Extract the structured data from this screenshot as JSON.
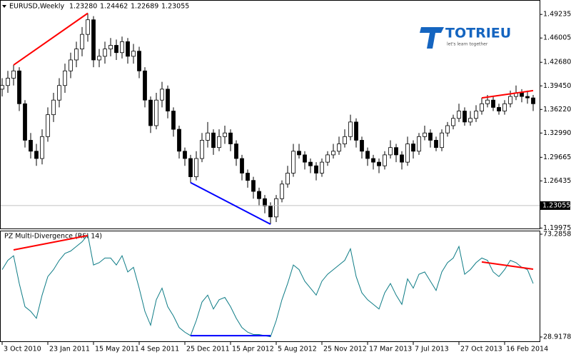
{
  "header": {
    "symbol": "EURUSD,Weekly",
    "ohlc": [
      "1.23280",
      "1.24462",
      "1.22689",
      "1.23055"
    ]
  },
  "logo": {
    "name": "TOTRIEU",
    "tagline": "let's learn together"
  },
  "chart_data": [
    {
      "type": "candlestick",
      "open": [
        1.39,
        1.395,
        1.405,
        1.415,
        1.37,
        1.32,
        1.305,
        1.295,
        1.325,
        1.355,
        1.375,
        1.395,
        1.415,
        1.43,
        1.445,
        1.465,
        1.485,
        1.43,
        1.435,
        1.445,
        1.45,
        1.44,
        1.455,
        1.435,
        1.442,
        1.415,
        1.375,
        1.34,
        1.375,
        1.39,
        1.36,
        1.335,
        1.305,
        1.295,
        1.27,
        1.295,
        1.32,
        1.33,
        1.31,
        1.325,
        1.33,
        1.315,
        1.295,
        1.275,
        1.265,
        1.25,
        1.24,
        1.23,
        1.215,
        1.24,
        1.26,
        1.275,
        1.305,
        1.3,
        1.29,
        1.285,
        1.275,
        1.29,
        1.3,
        1.305,
        1.315,
        1.325,
        1.345,
        1.32,
        1.305,
        1.295,
        1.29,
        1.285,
        1.3,
        1.31,
        1.3,
        1.29,
        1.315,
        1.305,
        1.325,
        1.33,
        1.32,
        1.31,
        1.33,
        1.34,
        1.35,
        1.36,
        1.345,
        1.35,
        1.36,
        1.37,
        1.375,
        1.365,
        1.36,
        1.37,
        1.38,
        1.385,
        1.38,
        1.378
      ],
      "high": [
        1.405,
        1.415,
        1.423,
        1.42,
        1.375,
        1.33,
        1.315,
        1.335,
        1.365,
        1.385,
        1.405,
        1.425,
        1.44,
        1.455,
        1.475,
        1.494,
        1.49,
        1.445,
        1.455,
        1.46,
        1.458,
        1.462,
        1.46,
        1.452,
        1.448,
        1.42,
        1.38,
        1.385,
        1.4,
        1.395,
        1.365,
        1.34,
        1.31,
        1.3,
        1.305,
        1.33,
        1.345,
        1.335,
        1.335,
        1.34,
        1.335,
        1.32,
        1.3,
        1.28,
        1.27,
        1.255,
        1.245,
        1.235,
        1.245,
        1.265,
        1.285,
        1.315,
        1.315,
        1.305,
        1.295,
        1.29,
        1.295,
        1.305,
        1.315,
        1.325,
        1.335,
        1.355,
        1.35,
        1.325,
        1.31,
        1.3,
        1.295,
        1.305,
        1.32,
        1.315,
        1.305,
        1.325,
        1.32,
        1.33,
        1.34,
        1.335,
        1.325,
        1.335,
        1.345,
        1.355,
        1.37,
        1.365,
        1.36,
        1.368,
        1.378,
        1.382,
        1.38,
        1.37,
        1.375,
        1.388,
        1.395,
        1.39,
        1.388,
        1.382
      ],
      "low": [
        1.38,
        1.385,
        1.395,
        1.36,
        1.31,
        1.295,
        1.285,
        1.287,
        1.318,
        1.345,
        1.365,
        1.385,
        1.405,
        1.42,
        1.435,
        1.455,
        1.42,
        1.42,
        1.425,
        1.435,
        1.43,
        1.432,
        1.425,
        1.425,
        1.405,
        1.365,
        1.33,
        1.335,
        1.365,
        1.35,
        1.325,
        1.295,
        1.285,
        1.262,
        1.265,
        1.29,
        1.31,
        1.3,
        1.305,
        1.315,
        1.305,
        1.285,
        1.265,
        1.255,
        1.24,
        1.23,
        1.22,
        1.205,
        1.208,
        1.235,
        1.255,
        1.27,
        1.295,
        1.28,
        1.275,
        1.265,
        1.27,
        1.285,
        1.295,
        1.3,
        1.31,
        1.32,
        1.31,
        1.295,
        1.285,
        1.28,
        1.275,
        1.28,
        1.295,
        1.29,
        1.28,
        1.285,
        1.295,
        1.3,
        1.32,
        1.31,
        1.305,
        1.305,
        1.325,
        1.335,
        1.345,
        1.34,
        1.34,
        1.345,
        1.355,
        1.365,
        1.36,
        1.355,
        1.355,
        1.365,
        1.375,
        1.372,
        1.37,
        1.36
      ],
      "close": [
        1.395,
        1.405,
        1.415,
        1.37,
        1.32,
        1.305,
        1.295,
        1.325,
        1.355,
        1.375,
        1.395,
        1.415,
        1.43,
        1.445,
        1.465,
        1.485,
        1.43,
        1.435,
        1.445,
        1.45,
        1.44,
        1.455,
        1.435,
        1.442,
        1.415,
        1.375,
        1.34,
        1.375,
        1.39,
        1.36,
        1.335,
        1.305,
        1.295,
        1.27,
        1.295,
        1.32,
        1.33,
        1.31,
        1.325,
        1.33,
        1.315,
        1.295,
        1.275,
        1.265,
        1.25,
        1.24,
        1.23,
        1.215,
        1.24,
        1.26,
        1.275,
        1.305,
        1.3,
        1.29,
        1.285,
        1.275,
        1.29,
        1.3,
        1.305,
        1.315,
        1.325,
        1.345,
        1.32,
        1.305,
        1.295,
        1.29,
        1.285,
        1.3,
        1.31,
        1.3,
        1.29,
        1.315,
        1.305,
        1.325,
        1.33,
        1.32,
        1.31,
        1.33,
        1.34,
        1.35,
        1.36,
        1.345,
        1.35,
        1.36,
        1.37,
        1.375,
        1.365,
        1.36,
        1.37,
        1.38,
        1.385,
        1.38,
        1.378,
        1.37
      ],
      "ylim": [
        1.1982,
        1.4984
      ],
      "yticks": [
        1.49235,
        1.46005,
        {
          "value": 1.4268,
          "label": "1.42680"
        },
        {
          "value": 1.3945,
          "label": "1.39450"
        },
        {
          "value": 1.3622,
          "label": "1.36220"
        },
        {
          "value": 1.3299,
          "label": "1.32990"
        },
        1.29665,
        1.26435,
        1.19975
      ],
      "last_price": {
        "value": 1.23055,
        "label": "1.23055"
      },
      "trendlines": [
        {
          "x": [
            2,
            15
          ],
          "y": [
            1.423,
            1.494
          ],
          "color": "#ff0000"
        },
        {
          "x": [
            33,
            47
          ],
          "y": [
            1.262,
            1.205
          ],
          "color": "#0000ff"
        },
        {
          "x": [
            84,
            93
          ],
          "y": [
            1.378,
            1.388
          ],
          "color": "#ff0000"
        }
      ]
    },
    {
      "type": "line",
      "title": "PZ Multi-Divergence (RSI 14)",
      "color": "#0e7c86",
      "values": [
        58,
        62,
        64,
        52,
        42,
        40,
        37,
        47,
        55,
        58,
        62,
        65,
        66,
        68,
        70,
        73,
        60,
        61,
        63,
        63,
        60,
        64,
        57,
        59,
        50,
        40,
        34,
        45,
        50,
        42,
        38,
        33,
        31,
        29.5,
        36,
        44,
        47,
        41,
        45,
        46,
        42,
        37,
        33,
        31,
        30,
        30,
        29.5,
        29,
        36,
        45,
        52,
        60,
        58,
        53,
        50,
        47,
        53,
        56,
        58,
        60,
        62,
        67,
        55,
        48,
        45,
        43,
        41,
        48,
        52,
        47,
        43,
        54,
        50,
        56,
        57,
        53,
        49,
        57,
        61,
        63,
        68,
        56,
        58,
        61,
        63,
        62,
        57,
        55,
        58,
        62,
        61,
        59,
        58,
        52
      ],
      "ylim": [
        28.9178,
        73.2858
      ],
      "yticks": [
        73.2858,
        28.9178
      ],
      "xticks": [
        {
          "value": 0,
          "label": "3 Oct 2010"
        },
        {
          "value": 8,
          "label": "23 Jan 2011"
        },
        {
          "value": 16,
          "label": "15 May 2011"
        },
        {
          "value": 24,
          "label": "4 Sep 2011"
        },
        {
          "value": 32,
          "label": "25 Dec 2011"
        },
        {
          "value": 40,
          "label": "15 Apr 2012"
        },
        {
          "value": 48,
          "label": "5 Aug 2012"
        },
        {
          "value": 56,
          "label": "25 Nov 2012"
        },
        {
          "value": 64,
          "label": "17 Mar 2013"
        },
        {
          "value": 72,
          "label": "7 Jul 2013"
        },
        {
          "value": 80,
          "label": "27 Oct 2013"
        },
        {
          "value": 88,
          "label": "16 Feb 2014"
        }
      ],
      "trendlines": [
        {
          "x": [
            2,
            15
          ],
          "y": [
            66.5,
            72.7
          ],
          "color": "#ff0000"
        },
        {
          "x": [
            33,
            47
          ],
          "y": [
            29.5,
            29.5
          ],
          "color": "#0000ff"
        },
        {
          "x": [
            84,
            93
          ],
          "y": [
            61.3,
            58.2
          ],
          "color": "#ff0000"
        }
      ]
    }
  ]
}
